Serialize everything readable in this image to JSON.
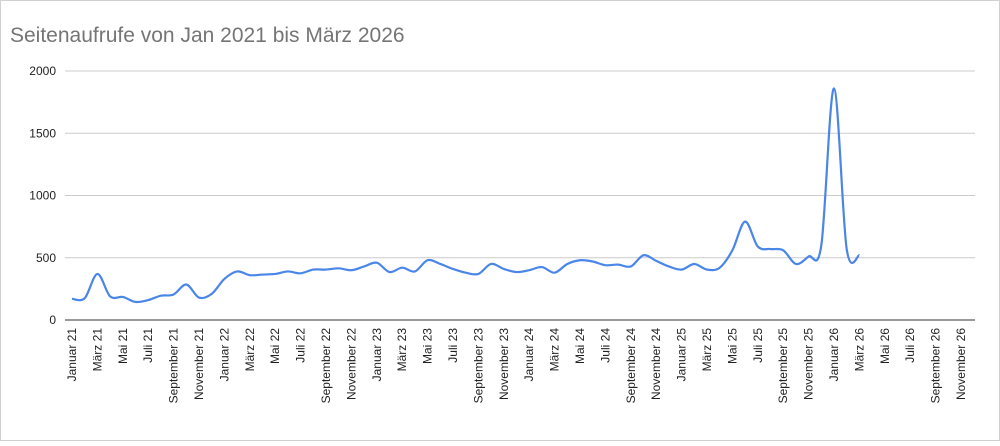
{
  "chart_data": {
    "type": "line",
    "title": "Seitenaufrufe von Jan 2021 bis März 2026",
    "categories": [
      "Januar 21",
      null,
      "März 21",
      null,
      "Mai 21",
      null,
      "Juli 21",
      null,
      "September 21",
      null,
      "November 21",
      null,
      "Januar 22",
      null,
      "März 22",
      null,
      "Mai 22",
      null,
      "Juli 22",
      null,
      "September 22",
      null,
      "November 22",
      null,
      "Januar 23",
      null,
      "März 23",
      null,
      "Mai 23",
      null,
      "Juli 23",
      null,
      "September 23",
      null,
      "November 23",
      null,
      "Januar 24",
      null,
      "März 24",
      null,
      "Mai 24",
      null,
      "Juli 24",
      null,
      "September 24",
      null,
      "November 24",
      null,
      "Januar 25",
      null,
      "März 25",
      null,
      "Mai 25",
      null,
      "Juli 25",
      null,
      "September 25",
      null,
      "November 25",
      null,
      "Januar 26",
      null,
      "März 26",
      null,
      "Mai 26",
      null,
      "Juli 26",
      null,
      "September 26",
      null,
      "November 26",
      null
    ],
    "series": [
      {
        "color": "#4a86e8",
        "values": [
          170,
          175,
          370,
          190,
          185,
          145,
          160,
          195,
          205,
          285,
          180,
          210,
          330,
          390,
          360,
          365,
          370,
          390,
          375,
          405,
          405,
          415,
          400,
          430,
          460,
          385,
          420,
          390,
          480,
          450,
          410,
          380,
          370,
          450,
          410,
          385,
          400,
          425,
          380,
          450,
          480,
          470,
          440,
          445,
          430,
          520,
          475,
          430,
          405,
          450,
          405,
          420,
          560,
          790,
          590,
          570,
          560,
          450,
          510,
          600,
          1860,
          570,
          520,
          null,
          null,
          null,
          null,
          null,
          null,
          null,
          null,
          null
        ]
      }
    ],
    "ylim": [
      0,
      2000
    ],
    "yticks": [
      0,
      500,
      1000,
      1500,
      2000
    ],
    "grid": true
  }
}
